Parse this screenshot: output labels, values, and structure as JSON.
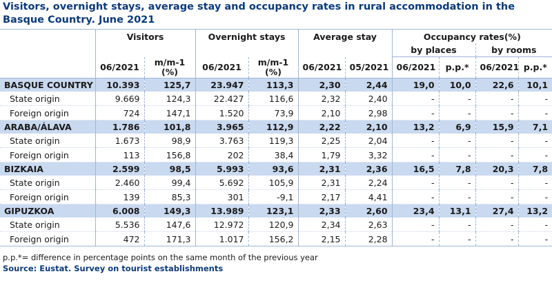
{
  "title": "Visitors, overnight stays, average stay and occupancy rates in rural accommodation in the Basque Country. June 2021",
  "headers": {
    "visitors": "Visitors",
    "overnight_stays": "Overnight stays",
    "average_stay": "Average stay",
    "occupancy": "Occupancy rates(%)",
    "by_places": "by places",
    "by_rooms": "by rooms",
    "period": "06/2021",
    "period_prev": "05/2021",
    "mm1_line1": "m/m-1",
    "mm1_line2": "(%)",
    "pp": "p.p.*"
  },
  "rows": [
    {
      "label": "BASQUE COUNTRY",
      "type": "region",
      "cells": [
        "10.393",
        "125,7",
        "23.947",
        "113,3",
        "2,30",
        "2,44",
        "19,0",
        "10,0",
        "22,6",
        "10,1"
      ]
    },
    {
      "label": "State origin",
      "type": "sub",
      "cells": [
        "9.669",
        "124,3",
        "22.427",
        "116,6",
        "2,32",
        "2,40",
        "-",
        "-",
        "-",
        "-"
      ]
    },
    {
      "label": "Foreign origin",
      "type": "sub",
      "cells": [
        "724",
        "147,1",
        "1.520",
        "73,9",
        "2,10",
        "2,98",
        "-",
        "-",
        "-",
        "-"
      ]
    },
    {
      "label": "ARABA/ÁLAVA",
      "type": "region",
      "cells": [
        "1.786",
        "101,8",
        "3.965",
        "112,9",
        "2,22",
        "2,10",
        "13,2",
        "6,9",
        "15,9",
        "7,1"
      ]
    },
    {
      "label": "State origin",
      "type": "sub",
      "cells": [
        "1.673",
        "98,9",
        "3.763",
        "119,3",
        "2,25",
        "2,04",
        "-",
        "-",
        "-",
        "-"
      ]
    },
    {
      "label": "Foreign origin",
      "type": "sub",
      "cells": [
        "113",
        "156,8",
        "202",
        "38,4",
        "1,79",
        "3,32",
        "-",
        "-",
        "-",
        "-"
      ]
    },
    {
      "label": "BIZKAIA",
      "type": "region",
      "cells": [
        "2.599",
        "98,5",
        "5.993",
        "93,6",
        "2,31",
        "2,36",
        "16,5",
        "7,8",
        "20,3",
        "7,8"
      ]
    },
    {
      "label": "State origin",
      "type": "sub",
      "cells": [
        "2.460",
        "99,4",
        "5.692",
        "105,9",
        "2,31",
        "2,24",
        "-",
        "-",
        "-",
        "-"
      ]
    },
    {
      "label": "Foreign origin",
      "type": "sub",
      "cells": [
        "139",
        "85,3",
        "301",
        "-9,1",
        "2,17",
        "4,41",
        "-",
        "-",
        "-",
        "-"
      ]
    },
    {
      "label": "GIPUZKOA",
      "type": "region",
      "cells": [
        "6.008",
        "149,3",
        "13.989",
        "123,1",
        "2,33",
        "2,60",
        "23,4",
        "13,1",
        "27,4",
        "13,2"
      ]
    },
    {
      "label": "State origin",
      "type": "sub",
      "cells": [
        "5.536",
        "147,6",
        "12.972",
        "120,9",
        "2,34",
        "2,63",
        "-",
        "-",
        "-",
        "-"
      ]
    },
    {
      "label": "Foreign origin",
      "type": "sub",
      "cells": [
        "472",
        "171,3",
        "1.017",
        "156,2",
        "2,15",
        "2,28",
        "-",
        "-",
        "-",
        "-"
      ]
    }
  ],
  "footnote": "p.p.*= difference in percentage points on the same month of the previous year",
  "source": "Source: Eustat. Survey on tourist establishments",
  "colors": {
    "title": "#0b3a78",
    "region_band": "#c9d9ef",
    "rule": "#9fb6d6"
  }
}
